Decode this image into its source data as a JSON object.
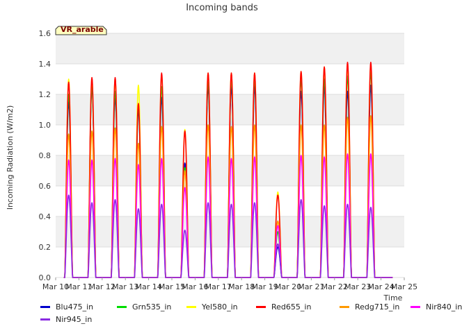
{
  "chart_data": {
    "type": "line",
    "title": "Incoming bands",
    "ylabel": "Incoming Radiation (W/m2)",
    "xlabel": "Time",
    "annotation": "VR_arable",
    "ylim": [
      0.0,
      1.6
    ],
    "y_ticks": [
      "0.0",
      "0.2",
      "0.4",
      "0.6",
      "0.8",
      "1.0",
      "1.2",
      "1.4",
      "1.6"
    ],
    "x_tick_labels": [
      "Mar 10",
      "Mar 11",
      "Mar 12",
      "Mar 13",
      "Mar 14",
      "Mar 15",
      "Mar 16",
      "Mar 17",
      "Mar 18",
      "Mar 19",
      "Mar 20",
      "Mar 21",
      "Mar 22",
      "Mar 23",
      "Mar 24",
      "Mar 25"
    ],
    "x_unit": "days",
    "grid": true,
    "legend_position": "bottom",
    "series": [
      {
        "name": "Blu475_in",
        "color": "#0000cc",
        "peaks": [
          1.15,
          1.25,
          1.18,
          1.1,
          1.18,
          0.75,
          1.25,
          1.25,
          1.25,
          0.2,
          1.22,
          1.25,
          1.22,
          1.26
        ]
      },
      {
        "name": "Grn535_in",
        "color": "#00dd00",
        "peaks": [
          1.2,
          1.25,
          1.22,
          1.12,
          1.25,
          0.72,
          1.28,
          1.3,
          1.3,
          0.3,
          1.3,
          1.3,
          1.32,
          1.35
        ]
      },
      {
        "name": "Yel580_in",
        "color": "#ffff00",
        "peaks": [
          1.3,
          1.3,
          1.3,
          1.26,
          1.33,
          0.97,
          1.34,
          1.34,
          1.34,
          0.56,
          1.35,
          1.38,
          1.4,
          1.4
        ]
      },
      {
        "name": "Red655_in",
        "color": "#ff0000",
        "peaks": [
          1.28,
          1.31,
          1.31,
          1.14,
          1.34,
          0.96,
          1.34,
          1.34,
          1.34,
          0.54,
          1.35,
          1.38,
          1.41,
          1.41
        ]
      },
      {
        "name": "Redg715_in",
        "color": "#ff9900",
        "peaks": [
          0.94,
          0.96,
          0.98,
          0.88,
          0.99,
          0.7,
          1.0,
          0.99,
          1.0,
          0.37,
          1.0,
          1.0,
          1.05,
          1.06
        ]
      },
      {
        "name": "Nir840_in",
        "color": "#ff00ff",
        "peaks": [
          0.77,
          0.77,
          0.78,
          0.74,
          0.78,
          0.59,
          0.79,
          0.78,
          0.79,
          0.34,
          0.8,
          0.79,
          0.81,
          0.81
        ]
      },
      {
        "name": "Nir945_in",
        "color": "#8a2be2",
        "peaks": [
          0.54,
          0.49,
          0.51,
          0.45,
          0.48,
          0.31,
          0.49,
          0.48,
          0.49,
          0.22,
          0.51,
          0.47,
          0.48,
          0.46
        ]
      }
    ],
    "day_starts": [
      10,
      11,
      12,
      13,
      14,
      15,
      16,
      17,
      18,
      19,
      20,
      21,
      22,
      23
    ],
    "day_peak_offset": 0.5,
    "day_width": 0.34
  }
}
